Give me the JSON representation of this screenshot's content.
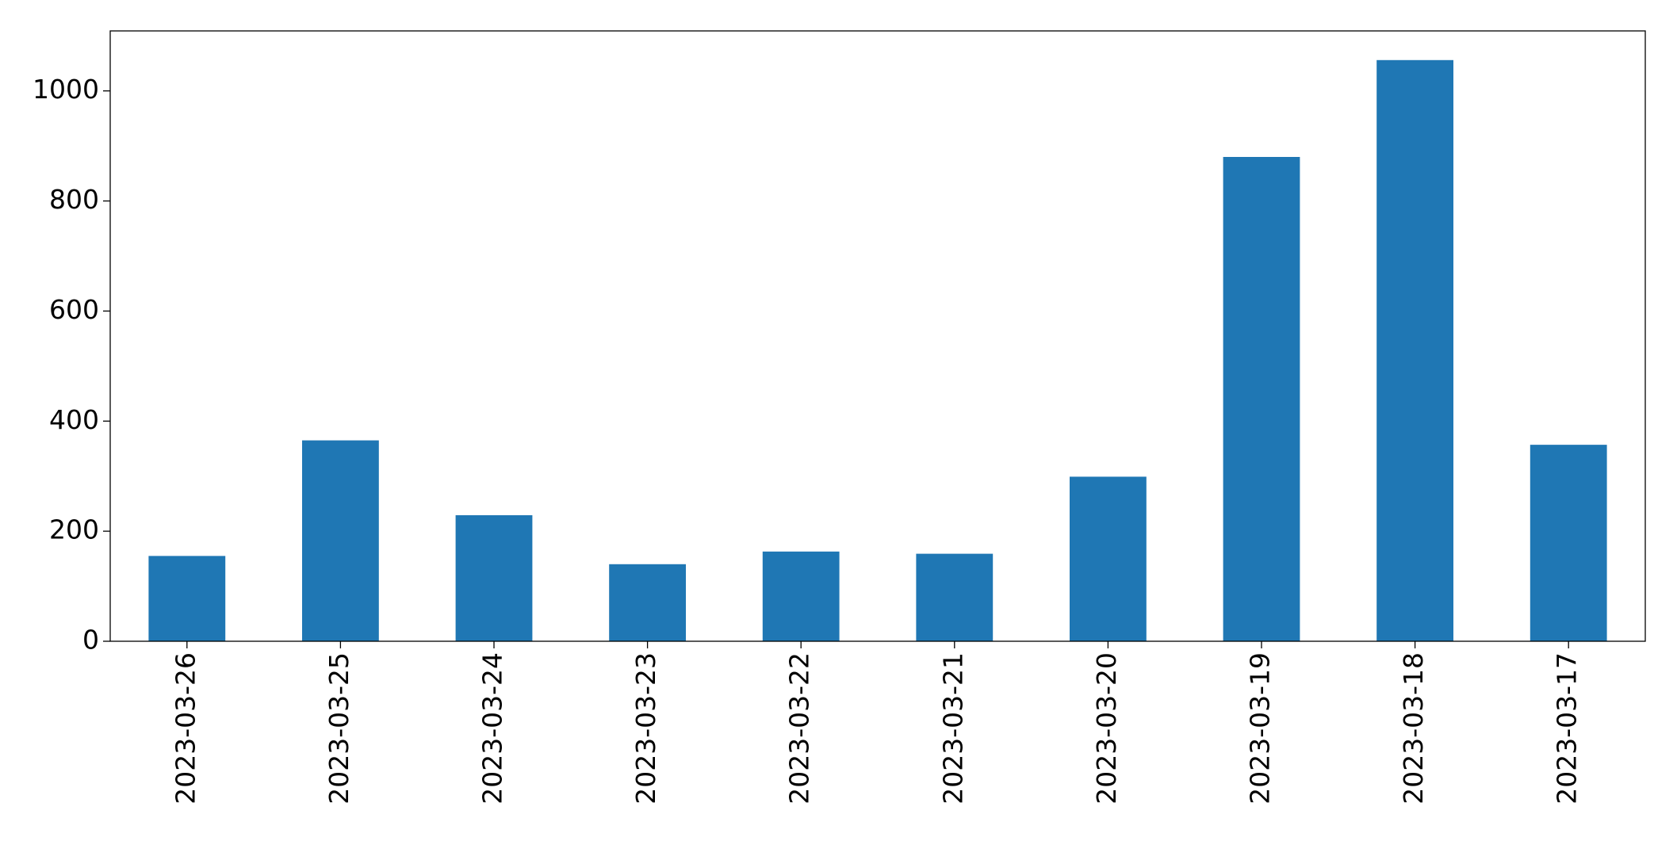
{
  "chart_data": {
    "type": "bar",
    "categories": [
      "2023-03-26",
      "2023-03-25",
      "2023-03-24",
      "2023-03-23",
      "2023-03-22",
      "2023-03-21",
      "2023-03-20",
      "2023-03-19",
      "2023-03-18",
      "2023-03-17"
    ],
    "values": [
      155,
      365,
      229,
      140,
      163,
      159,
      299,
      880,
      1056,
      357
    ],
    "color": "#1f77b4",
    "ylim": [
      0,
      1109
    ],
    "yticks": [
      0,
      200,
      400,
      600,
      800,
      1000
    ],
    "grid": false
  }
}
